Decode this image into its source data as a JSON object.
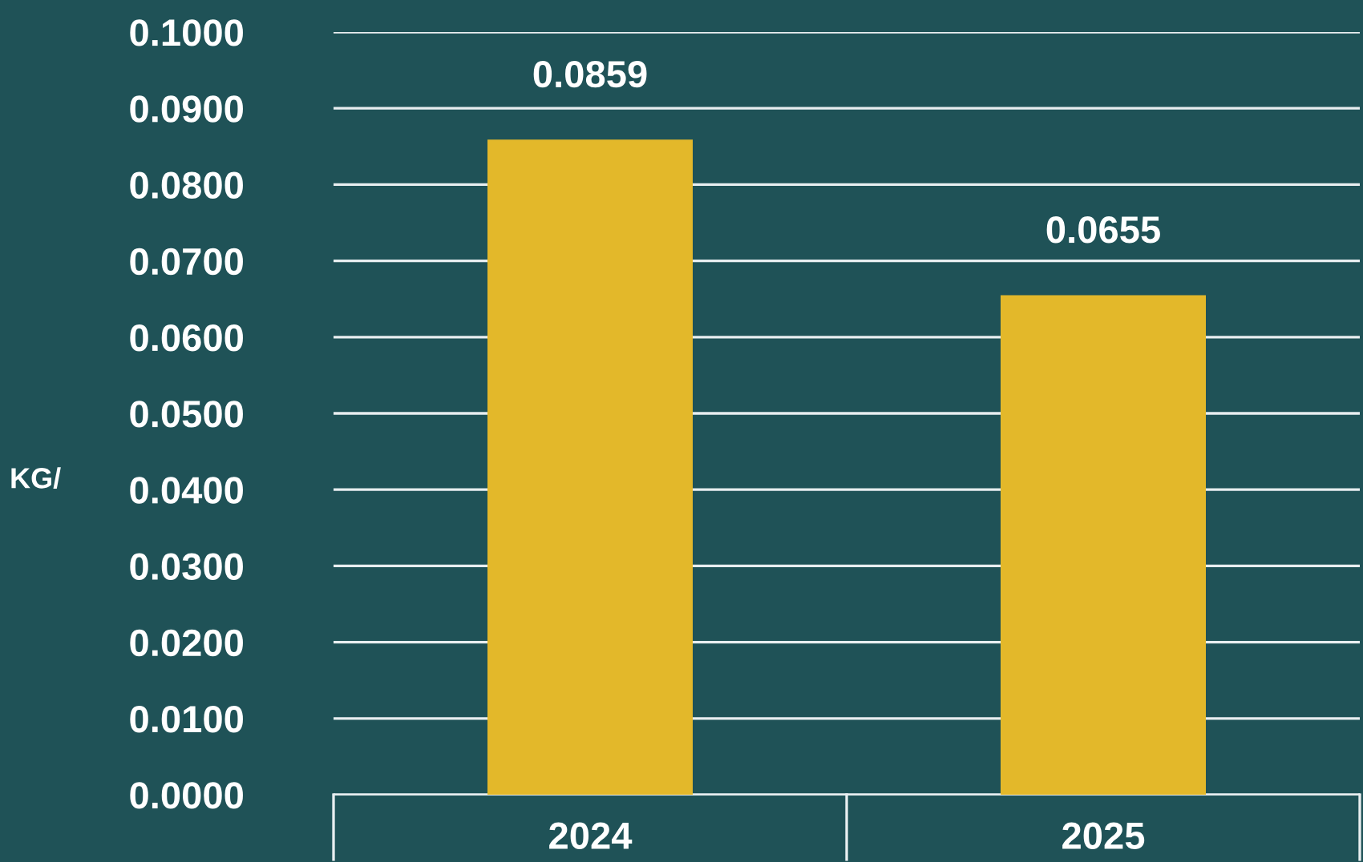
{
  "chart_data": {
    "type": "bar",
    "ylabel": "KG/",
    "categories": [
      "2024",
      "2025"
    ],
    "values": [
      0.0859,
      0.0655
    ],
    "color": "#e3b82a",
    "value_labels": [
      "0.0859",
      "0.0655"
    ],
    "ylim": [
      0,
      0.1
    ],
    "yticks": [
      {
        "value": 0,
        "label": "0.0000"
      },
      {
        "value": 0.01,
        "label": "0.0100"
      },
      {
        "value": 0.02,
        "label": "0.0200"
      },
      {
        "value": 0.03,
        "label": "0.0300"
      },
      {
        "value": 0.04,
        "label": "0.0400"
      },
      {
        "value": 0.05,
        "label": "0.0500"
      },
      {
        "value": 0.06,
        "label": "0.0600"
      },
      {
        "value": 0.07,
        "label": "0.0700"
      },
      {
        "value": 0.08,
        "label": "0.0800"
      },
      {
        "value": 0.09,
        "label": "0.0900"
      },
      {
        "value": 0.1,
        "label": "0.1000"
      }
    ],
    "grid": "y"
  }
}
